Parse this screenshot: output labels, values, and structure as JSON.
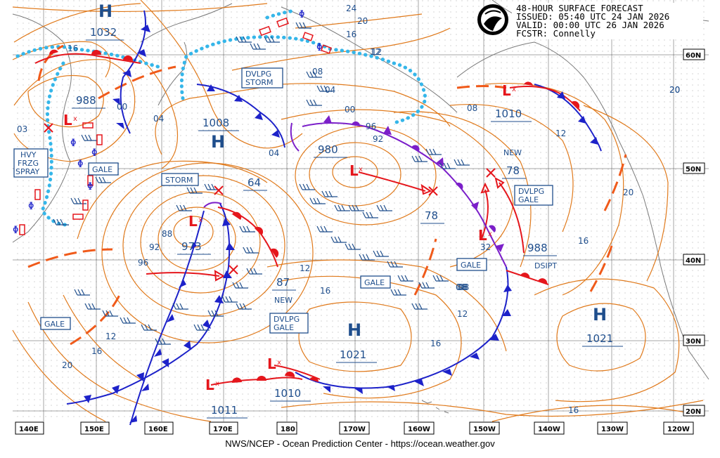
{
  "header": {
    "title_line": "48-HOUR SURFACE FORECAST",
    "issued_line": "ISSUED: 05:40 UTC 24 JAN 2026",
    "valid_line": "VALID:  00:00 UTC 26 JAN 2026",
    "forecaster_line": "FCSTR:  Connelly",
    "logo": "noaa-logo"
  },
  "footer": {
    "credit": "NWS/NCEP - Ocean Prediction Center - https://ocean.weather.gov"
  },
  "axes": {
    "longitudes": [
      "140E",
      "150E",
      "160E",
      "170E",
      "180",
      "170W",
      "160W",
      "150W",
      "140W",
      "130W",
      "120W"
    ],
    "latitudes": [
      "60N",
      "50N",
      "40N",
      "30N",
      "20N"
    ]
  },
  "pressure_systems": {
    "highs": [
      {
        "letter": "H",
        "value": "1032"
      },
      {
        "letter": "H",
        "value": "1008"
      },
      {
        "letter": "H",
        "value": "1021"
      },
      {
        "letter": "H",
        "value": "1021"
      }
    ],
    "lows": [
      {
        "letter": "L",
        "value": "988"
      },
      {
        "letter": "L",
        "value": "973"
      },
      {
        "letter": "L",
        "value": "980"
      },
      {
        "letter": "L",
        "value": "1010"
      },
      {
        "letter": "L",
        "value": "1011"
      },
      {
        "letter": "L",
        "value": "1010"
      },
      {
        "letter": "L",
        "value": "988"
      }
    ],
    "forecast_positions": [
      "64",
      "87",
      "78",
      "78"
    ]
  },
  "warnings": {
    "storm_left": "STORM",
    "dvlpg_storm": [
      "DVLPG",
      "STORM"
    ],
    "gale_1": "GALE",
    "gale_2": "GALE",
    "gale_3": "GALE",
    "gale_4": "GALE",
    "dvlpg_gale_1": [
      "DVLPG",
      "GALE"
    ],
    "dvlpg_gale_2": [
      "DVLPG",
      "GALE"
    ],
    "hvy_frzg_spray": [
      "HVY",
      "FRZG",
      "SPRAY"
    ]
  },
  "annotations": {
    "new_1": "NEW",
    "new_2": "NEW",
    "dsipt": "DSIPT"
  },
  "isobar_labels": [
    "24",
    "20",
    "16",
    "12",
    "08",
    "04",
    "00",
    "04",
    "08",
    "12",
    "16",
    "20",
    "16",
    "12",
    "08",
    "04",
    "00",
    "96",
    "92",
    "88",
    "92",
    "96",
    "03",
    "20",
    "16",
    "12",
    "08",
    "12",
    "16",
    "20",
    "16",
    "20",
    "32",
    "16",
    "12",
    "08"
  ]
}
